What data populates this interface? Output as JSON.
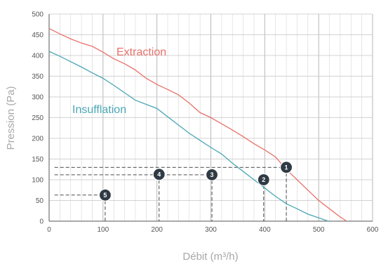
{
  "chart_data": {
    "type": "line",
    "xlabel": "Débit (m³/h)",
    "ylabel": "Pression (Pa)",
    "xlim": [
      0,
      600
    ],
    "ylim": [
      0,
      500
    ],
    "x_ticks": [
      0,
      100,
      200,
      300,
      400,
      500,
      600
    ],
    "y_ticks": [
      0,
      50,
      100,
      150,
      200,
      250,
      300,
      350,
      400,
      450,
      500
    ],
    "grid": true,
    "series": [
      {
        "name": "Extraction",
        "color": "#e8706a",
        "x": [
          0,
          20,
          40,
          60,
          80,
          100,
          120,
          140,
          160,
          180,
          200,
          220,
          240,
          260,
          280,
          300,
          320,
          340,
          360,
          380,
          400,
          420,
          440,
          460,
          480,
          500,
          520,
          540,
          552
        ],
        "y": [
          465,
          452,
          440,
          430,
          422,
          408,
          392,
          380,
          365,
          345,
          330,
          318,
          305,
          285,
          262,
          250,
          235,
          220,
          204,
          187,
          172,
          155,
          125,
          100,
          75,
          50,
          30,
          10,
          0
        ]
      },
      {
        "name": "Insufflation",
        "color": "#4aa7b5",
        "x": [
          0,
          20,
          40,
          60,
          80,
          100,
          120,
          140,
          160,
          180,
          200,
          220,
          240,
          260,
          280,
          300,
          320,
          340,
          360,
          380,
          400,
          420,
          440,
          460,
          480,
          500,
          518
        ],
        "y": [
          410,
          398,
          385,
          372,
          358,
          345,
          328,
          310,
          292,
          282,
          272,
          252,
          232,
          212,
          195,
          178,
          162,
          140,
          120,
          100,
          80,
          60,
          42,
          30,
          17,
          8,
          0
        ]
      }
    ],
    "markers": [
      {
        "label": "1",
        "x": 440,
        "y": 130
      },
      {
        "label": "2",
        "x": 398,
        "y": 100
      },
      {
        "label": "3",
        "x": 302,
        "y": 112
      },
      {
        "label": "4",
        "x": 204,
        "y": 113
      },
      {
        "label": "5",
        "x": 104,
        "y": 63
      }
    ],
    "dashed_guides": [
      {
        "from_x": 10,
        "to_x": 440,
        "y": 130,
        "down_from_y": 130
      },
      {
        "from_x": null,
        "to_x": null,
        "y": null,
        "down_from_y": 100,
        "at_x": 398
      },
      {
        "from_x": 10,
        "to_x": 302,
        "y": 112,
        "down_from_y": 112
      },
      {
        "from_x": null,
        "to_x": null,
        "y": null,
        "down_from_y": 113,
        "at_x": 204
      },
      {
        "from_x": 10,
        "to_x": 104,
        "y": 63,
        "down_from_y": 63
      }
    ]
  }
}
